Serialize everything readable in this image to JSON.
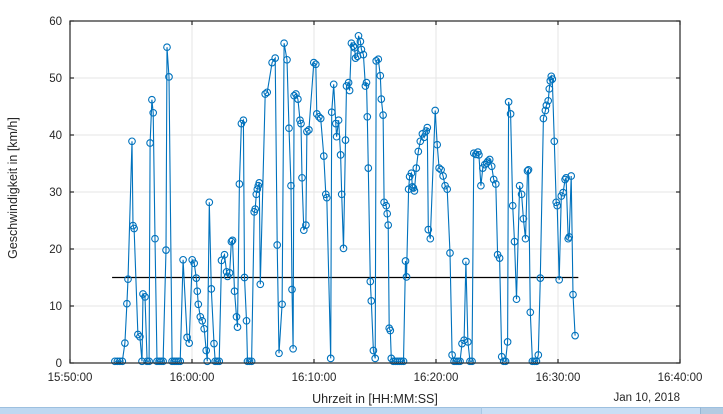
{
  "figure": {
    "background": "#ffffff",
    "date_label": "Jan 10, 2018"
  },
  "chart_data": {
    "type": "line",
    "title": "",
    "xlabel": "Uhrzeit in [HH:MM:SS]",
    "ylabel": "Geschwindigkeit in [km/h]",
    "x_axis_start": "15:50:00",
    "x_tick_labels": [
      "15:50:00",
      "16:00:00",
      "16:10:00",
      "16:20:00",
      "16:30:00",
      "16:40:00"
    ],
    "x_tick_seconds": [
      0,
      600,
      1200,
      1800,
      2400,
      3000
    ],
    "xlim_seconds": [
      0,
      3000
    ],
    "ylim": [
      0,
      60
    ],
    "yticks": [
      0,
      10,
      20,
      30,
      40,
      50,
      60
    ],
    "grid": true,
    "legend": "none",
    "line_color": "#0072BD",
    "marker": "open-circle",
    "axis_color": "#262626",
    "grid_color": "#e6e6e6",
    "mean_line": {
      "value": 15,
      "t_start_s": 207,
      "t_end_s": 2500,
      "color": "#000000"
    },
    "series": [
      {
        "name": "Geschwindigkeit",
        "points_t_s_v_kmh": [
          [
            221,
            0.3
          ],
          [
            233,
            0.3
          ],
          [
            245,
            0.3
          ],
          [
            257,
            0.3
          ],
          [
            270,
            3.5
          ],
          [
            280,
            10.4
          ],
          [
            285,
            14.7
          ],
          [
            305,
            38.9
          ],
          [
            310,
            24.1
          ],
          [
            315,
            23.6
          ],
          [
            334,
            5.0
          ],
          [
            344,
            4.6
          ],
          [
            354,
            0.3
          ],
          [
            359,
            12.1
          ],
          [
            369,
            11.6
          ],
          [
            379,
            0.3
          ],
          [
            389,
            0.3
          ],
          [
            394,
            38.6
          ],
          [
            403,
            46.2
          ],
          [
            409,
            43.9
          ],
          [
            418,
            21.8
          ],
          [
            428,
            0.3
          ],
          [
            438,
            0.3
          ],
          [
            448,
            0.3
          ],
          [
            458,
            0.3
          ],
          [
            472,
            19.8
          ],
          [
            477,
            55.4
          ],
          [
            487,
            50.2
          ],
          [
            502,
            0.3
          ],
          [
            512,
            0.3
          ],
          [
            522,
            0.3
          ],
          [
            532,
            0.3
          ],
          [
            542,
            0.3
          ],
          [
            556,
            18.1
          ],
          [
            576,
            4.5
          ],
          [
            586,
            3.5
          ],
          [
            601,
            18.1
          ],
          [
            611,
            17.5
          ],
          [
            621,
            14.9
          ],
          [
            626,
            12.6
          ],
          [
            631,
            10.3
          ],
          [
            641,
            8.1
          ],
          [
            650,
            7.4
          ],
          [
            660,
            6.0
          ],
          [
            670,
            2.2
          ],
          [
            675,
            0.3
          ],
          [
            685,
            28.2
          ],
          [
            695,
            13.0
          ],
          [
            708,
            3.4
          ],
          [
            714,
            0.3
          ],
          [
            724,
            0.3
          ],
          [
            734,
            0.3
          ],
          [
            745,
            18.0
          ],
          [
            760,
            19.0
          ],
          [
            770,
            16.0
          ],
          [
            775,
            15.2
          ],
          [
            785,
            15.8
          ],
          [
            794,
            21.3
          ],
          [
            799,
            21.5
          ],
          [
            809,
            12.6
          ],
          [
            819,
            8.1
          ],
          [
            824,
            6.3
          ],
          [
            833,
            31.4
          ],
          [
            843,
            42.0
          ],
          [
            853,
            42.6
          ],
          [
            858,
            15.0
          ],
          [
            868,
            7.4
          ],
          [
            873,
            0.3
          ],
          [
            883,
            0.3
          ],
          [
            893,
            0.3
          ],
          [
            906,
            26.5
          ],
          [
            911,
            27.0
          ],
          [
            916,
            29.6
          ],
          [
            921,
            30.5
          ],
          [
            926,
            31.1
          ],
          [
            931,
            31.6
          ],
          [
            936,
            13.8
          ],
          [
            960,
            47.2
          ],
          [
            970,
            47.5
          ],
          [
            994,
            52.7
          ],
          [
            1009,
            53.5
          ],
          [
            1019,
            20.7
          ],
          [
            1028,
            1.7
          ],
          [
            1043,
            10.3
          ],
          [
            1053,
            56.1
          ],
          [
            1067,
            53.2
          ],
          [
            1077,
            41.2
          ],
          [
            1087,
            31.1
          ],
          [
            1092,
            12.9
          ],
          [
            1097,
            2.5
          ],
          [
            1102,
            46.9
          ],
          [
            1111,
            47.2
          ],
          [
            1121,
            46.3
          ],
          [
            1131,
            42.6
          ],
          [
            1136,
            42.0
          ],
          [
            1141,
            32.5
          ],
          [
            1150,
            23.3
          ],
          [
            1160,
            24.2
          ],
          [
            1165,
            40.6
          ],
          [
            1175,
            40.9
          ],
          [
            1199,
            52.7
          ],
          [
            1209,
            52.4
          ],
          [
            1214,
            43.7
          ],
          [
            1224,
            43.2
          ],
          [
            1233,
            42.9
          ],
          [
            1248,
            36.3
          ],
          [
            1258,
            29.6
          ],
          [
            1263,
            29.0
          ],
          [
            1282,
            0.8
          ],
          [
            1287,
            44.0
          ],
          [
            1297,
            48.9
          ],
          [
            1307,
            42.0
          ],
          [
            1311,
            39.7
          ],
          [
            1321,
            42.6
          ],
          [
            1331,
            36.5
          ],
          [
            1336,
            29.6
          ],
          [
            1345,
            20.1
          ],
          [
            1355,
            39.1
          ],
          [
            1360,
            48.6
          ],
          [
            1370,
            49.2
          ],
          [
            1375,
            47.8
          ],
          [
            1384,
            56.1
          ],
          [
            1394,
            55.6
          ],
          [
            1399,
            55.3
          ],
          [
            1404,
            53.5
          ],
          [
            1414,
            53.8
          ],
          [
            1419,
            57.4
          ],
          [
            1428,
            56.4
          ],
          [
            1433,
            55.0
          ],
          [
            1443,
            54.1
          ],
          [
            1453,
            48.6
          ],
          [
            1458,
            49.2
          ],
          [
            1462,
            43.2
          ],
          [
            1467,
            34.2
          ],
          [
            1477,
            14.3
          ],
          [
            1482,
            10.9
          ],
          [
            1492,
            2.2
          ],
          [
            1501,
            0.8
          ],
          [
            1506,
            53.0
          ],
          [
            1516,
            53.3
          ],
          [
            1526,
            50.4
          ],
          [
            1531,
            46.3
          ],
          [
            1540,
            43.5
          ],
          [
            1545,
            28.2
          ],
          [
            1555,
            27.6
          ],
          [
            1560,
            26.2
          ],
          [
            1565,
            24.2
          ],
          [
            1570,
            6.1
          ],
          [
            1575,
            5.7
          ],
          [
            1580,
            0.8
          ],
          [
            1590,
            0.3
          ],
          [
            1600,
            0.3
          ],
          [
            1610,
            0.3
          ],
          [
            1620,
            0.3
          ],
          [
            1630,
            0.3
          ],
          [
            1640,
            0.3
          ],
          [
            1650,
            17.9
          ],
          [
            1655,
            15.1
          ],
          [
            1665,
            30.5
          ],
          [
            1670,
            32.7
          ],
          [
            1679,
            33.3
          ],
          [
            1684,
            30.9
          ],
          [
            1689,
            30.7
          ],
          [
            1694,
            30.2
          ],
          [
            1703,
            34.2
          ],
          [
            1713,
            37.1
          ],
          [
            1723,
            38.9
          ],
          [
            1733,
            40.2
          ],
          [
            1742,
            39.6
          ],
          [
            1752,
            40.7
          ],
          [
            1757,
            41.3
          ],
          [
            1762,
            23.4
          ],
          [
            1772,
            21.8
          ],
          [
            1796,
            44.3
          ],
          [
            1806,
            38.3
          ],
          [
            1815,
            34.2
          ],
          [
            1825,
            33.9
          ],
          [
            1835,
            32.8
          ],
          [
            1845,
            31.1
          ],
          [
            1855,
            30.5
          ],
          [
            1869,
            19.3
          ],
          [
            1879,
            1.4
          ],
          [
            1889,
            0.3
          ],
          [
            1899,
            0.3
          ],
          [
            1909,
            0.3
          ],
          [
            1918,
            0.3
          ],
          [
            1928,
            3.4
          ],
          [
            1938,
            4.0
          ],
          [
            1947,
            17.8
          ],
          [
            1957,
            3.7
          ],
          [
            1967,
            0.3
          ],
          [
            1977,
            0.3
          ],
          [
            1986,
            36.8
          ],
          [
            1996,
            36.6
          ],
          [
            2006,
            37.0
          ],
          [
            2011,
            36.5
          ],
          [
            2021,
            31.1
          ],
          [
            2030,
            34.2
          ],
          [
            2040,
            34.8
          ],
          [
            2050,
            35.1
          ],
          [
            2055,
            35.4
          ],
          [
            2064,
            35.7
          ],
          [
            2074,
            34.5
          ],
          [
            2084,
            32.2
          ],
          [
            2094,
            31.4
          ],
          [
            2103,
            19.0
          ],
          [
            2113,
            18.4
          ],
          [
            2123,
            1.1
          ],
          [
            2133,
            0.3
          ],
          [
            2142,
            0.3
          ],
          [
            2152,
            3.7
          ],
          [
            2157,
            45.8
          ],
          [
            2167,
            43.7
          ],
          [
            2177,
            27.6
          ],
          [
            2186,
            21.3
          ],
          [
            2196,
            11.2
          ],
          [
            2211,
            31.1
          ],
          [
            2221,
            29.6
          ],
          [
            2230,
            25.3
          ],
          [
            2240,
            21.8
          ],
          [
            2250,
            33.7
          ],
          [
            2255,
            33.9
          ],
          [
            2264,
            8.9
          ],
          [
            2274,
            0.3
          ],
          [
            2284,
            0.3
          ],
          [
            2294,
            0.3
          ],
          [
            2303,
            1.4
          ],
          [
            2313,
            14.9
          ],
          [
            2328,
            42.9
          ],
          [
            2338,
            44.3
          ],
          [
            2343,
            45.2
          ],
          [
            2352,
            46.0
          ],
          [
            2357,
            48.1
          ],
          [
            2362,
            49.5
          ],
          [
            2367,
            50.3
          ],
          [
            2372,
            49.8
          ],
          [
            2382,
            38.9
          ],
          [
            2391,
            28.2
          ],
          [
            2396,
            27.6
          ],
          [
            2406,
            14.6
          ],
          [
            2416,
            29.3
          ],
          [
            2425,
            29.9
          ],
          [
            2435,
            32.2
          ],
          [
            2440,
            32.5
          ],
          [
            2450,
            21.8
          ],
          [
            2455,
            22.1
          ],
          [
            2465,
            32.8
          ],
          [
            2474,
            12.0
          ],
          [
            2484,
            4.8
          ]
        ]
      }
    ]
  }
}
